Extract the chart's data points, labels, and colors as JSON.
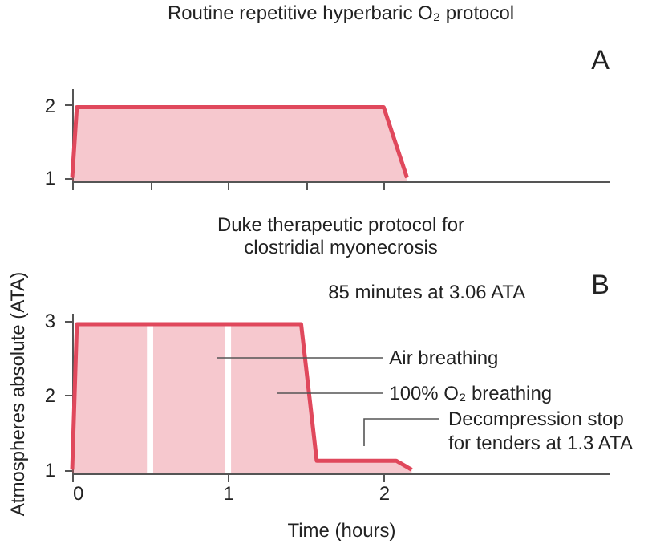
{
  "chart_data": [
    {
      "type": "area",
      "title": "Routine repetitive hyperbaric O₂ protocol",
      "x": [
        0,
        0.03,
        2.0,
        2.15
      ],
      "series": [
        {
          "color": "#e0485c",
          "values": [
            1,
            1.97,
            1.97,
            1
          ]
        }
      ],
      "xlim": [
        0,
        3.45
      ],
      "xticks": [
        {
          "value": 0,
          "label": null
        },
        {
          "value": 0.5,
          "label": null
        },
        {
          "value": 1,
          "label": null
        },
        {
          "value": 1.5,
          "label": null
        },
        {
          "value": 2,
          "label": null
        }
      ],
      "ylim": [
        0.95,
        2.23
      ],
      "yticks": [
        1,
        2
      ],
      "tick_labels": "y",
      "grid": false,
      "annotations": [
        "A"
      ]
    },
    {
      "type": "area",
      "title": "Duke therapeutic protocol for\nclostridial myonecrosis",
      "x": [
        0,
        0.03,
        1.47,
        1.57,
        2.08,
        2.18
      ],
      "series": [
        {
          "color": "#e0485c",
          "values": [
            1,
            2.95,
            2.95,
            1.12,
            1.12,
            1
          ]
        }
      ],
      "xlim": [
        0,
        3.45
      ],
      "xticks": [
        0,
        1,
        2
      ],
      "ylim": [
        0.95,
        3.1
      ],
      "yticks": [
        1,
        2,
        3
      ],
      "xlabel": "Time (hours)",
      "ylabel": "Atmospheres absolute (ATA)",
      "grid": false,
      "bands": [
        {
          "axis": "x",
          "from": 0.48,
          "to": 0.52,
          "color": "#ffffff"
        },
        {
          "axis": "x",
          "from": 0.98,
          "to": 1.02,
          "color": "#ffffff"
        }
      ],
      "annotations": [
        "B",
        "85 minutes at 3.06 ATA",
        "Air breathing",
        "100% O₂ breathing",
        "Decompression stop\nfor tenders at 1.3 ATA"
      ]
    }
  ]
}
